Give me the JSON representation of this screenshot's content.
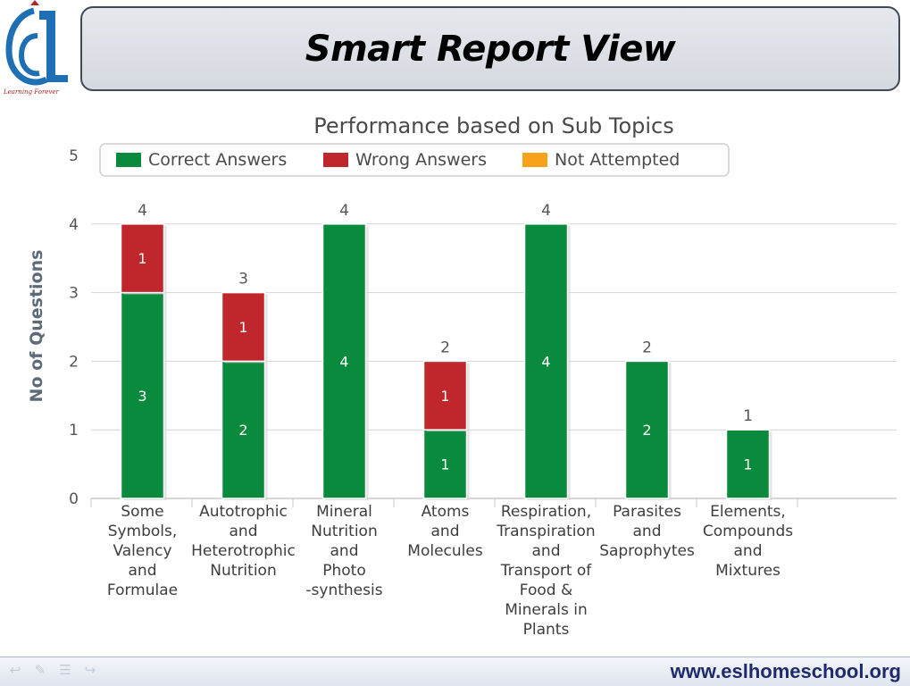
{
  "header": {
    "title": "Smart Report View",
    "logo_tagline": "Learning Forever"
  },
  "footer": {
    "url": "www.eslhomeschool.org",
    "nav_icons": [
      "back-arrow-icon",
      "pen-icon",
      "menu-icon",
      "forward-arrow-icon"
    ]
  },
  "colors": {
    "correct": "#0a8a3c",
    "wrong": "#c0272d",
    "not_attempted": "#f7a21b"
  },
  "chart_data": {
    "type": "bar",
    "stacked": true,
    "title": "Performance based on Sub Topics",
    "ylabel": "No of Questions",
    "xlabel": "",
    "ylim": [
      0,
      5
    ],
    "yticks": [
      0,
      1,
      2,
      3,
      4,
      5
    ],
    "grid": true,
    "legend_position": "top",
    "categories": [
      [
        "Some",
        "Symbols,",
        "Valency",
        "and",
        "Formulae"
      ],
      [
        "Autotrophic",
        "and",
        "Heterotrophic",
        "Nutrition"
      ],
      [
        "Mineral",
        "Nutrition",
        "and",
        "Photo",
        "-synthesis"
      ],
      [
        "Atoms",
        "and",
        "Molecules"
      ],
      [
        "Respiration,",
        "Transpiration",
        "and",
        "Transport of",
        "Food &",
        "Minerals in",
        "Plants"
      ],
      [
        "Parasites",
        "and",
        "Saprophytes"
      ],
      [
        "Elements,",
        "Compounds",
        "and",
        "Mixtures"
      ]
    ],
    "series": [
      {
        "name": "Correct Answers",
        "values": [
          3,
          2,
          4,
          1,
          4,
          2,
          1
        ]
      },
      {
        "name": "Wrong Answers",
        "values": [
          1,
          1,
          0,
          1,
          0,
          0,
          0
        ]
      },
      {
        "name": "Not Attempted",
        "values": [
          0,
          0,
          0,
          0,
          0,
          0,
          0
        ]
      }
    ],
    "totals": [
      4,
      3,
      4,
      2,
      4,
      2,
      1
    ]
  }
}
